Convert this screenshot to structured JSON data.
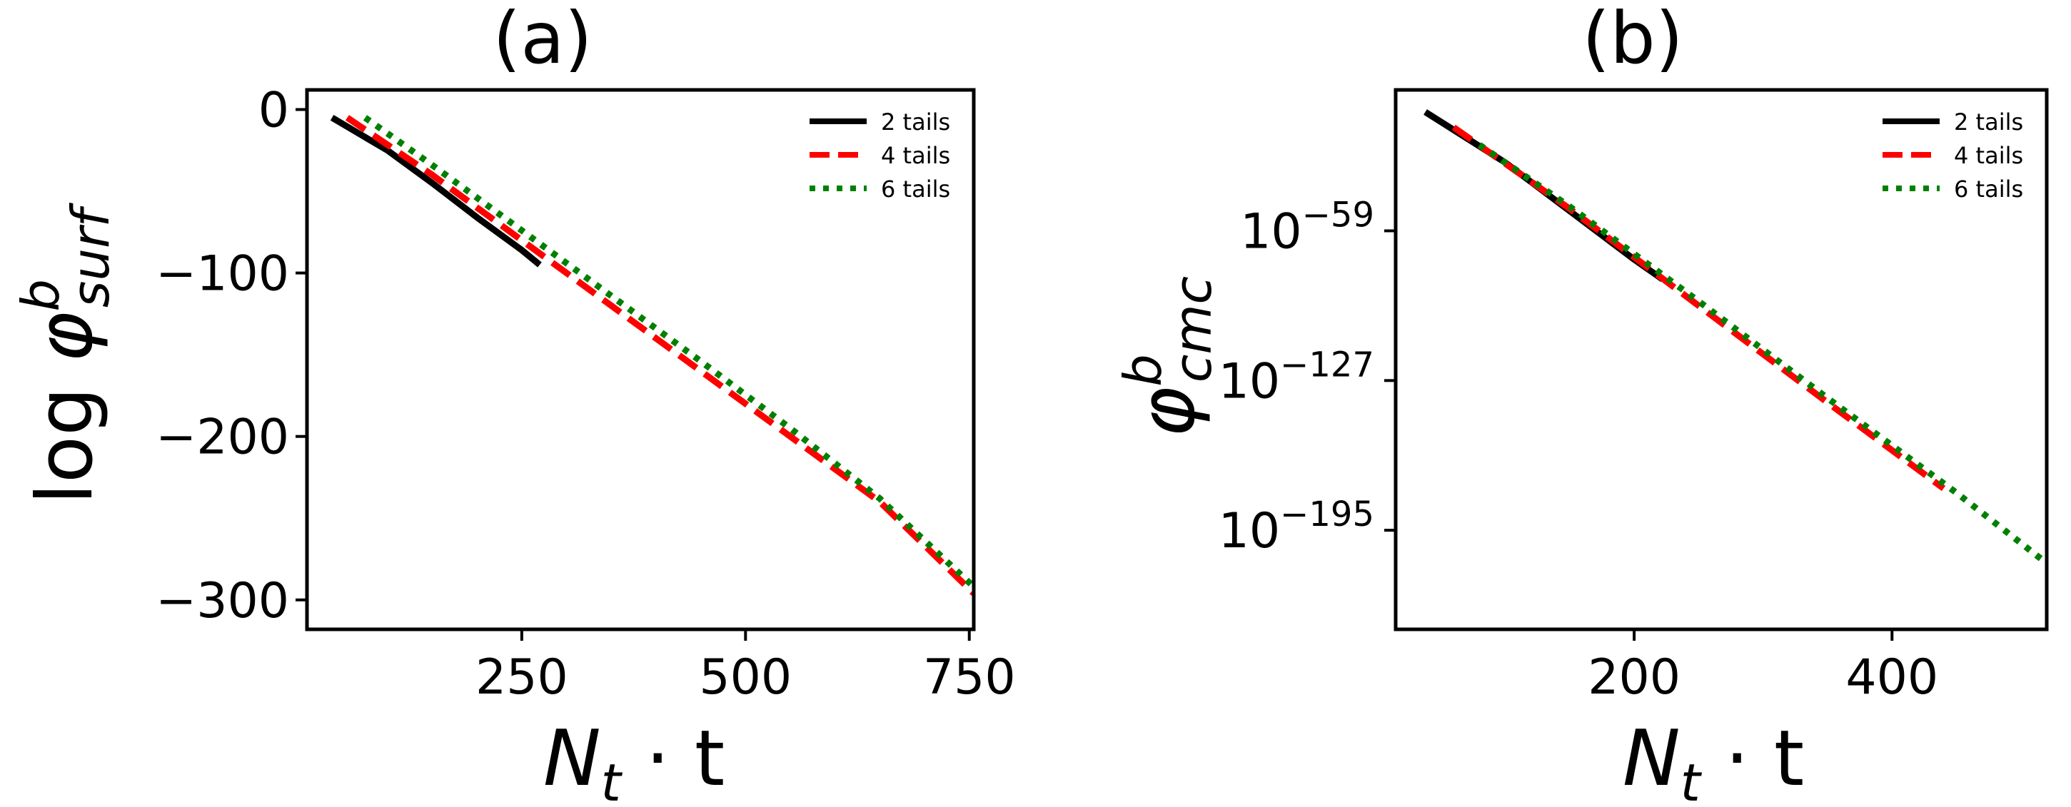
{
  "chart_data": [
    {
      "type": "line",
      "panel_label": "(a)",
      "title": "(a)",
      "xlabel": {
        "main": "N",
        "sub": "t",
        "rest": " · t"
      },
      "ylabel": {
        "prefix": "log ",
        "main": "φ",
        "sup": "b",
        "sub": "surf"
      },
      "xlim": [
        10,
        755
      ],
      "ylim": [
        -318,
        12
      ],
      "yscale": "linear",
      "grid": false,
      "legend_position": "top-right",
      "x_ticks": [
        250,
        500,
        750
      ],
      "x_tick_labels": [
        "250",
        "500",
        "750"
      ],
      "y_ticks": [
        0,
        -100,
        -200,
        -300
      ],
      "y_tick_labels": [
        "0",
        "−100",
        "−200",
        "−300"
      ],
      "series": [
        {
          "name": "2 tails",
          "color": "#000000",
          "dash": "solid",
          "x": [
            38,
            100,
            150,
            200,
            250,
            270
          ],
          "y": [
            -5,
            -25,
            -45,
            -66,
            -86,
            -95
          ]
        },
        {
          "name": "4 tails",
          "color": "#ff0000",
          "dash": "dashed",
          "x": [
            55,
            150,
            250,
            350,
            450,
            550,
            650,
            755
          ],
          "y": [
            -5,
            -40,
            -80,
            -120,
            -160,
            -200,
            -240,
            -296
          ]
        },
        {
          "name": "6 tails",
          "color": "#008000",
          "dash": "dotted",
          "x": [
            75,
            150,
            250,
            350,
            450,
            550,
            650,
            755
          ],
          "y": [
            -5,
            -34,
            -74,
            -114,
            -154,
            -195,
            -238,
            -292
          ]
        }
      ]
    },
    {
      "type": "line",
      "panel_label": "(b)",
      "title": "(b)",
      "xlabel": {
        "main": "N",
        "sub": "t",
        "rest": " · t"
      },
      "ylabel": {
        "prefix": "",
        "main": "φ",
        "sup": "b",
        "sub": "cmc"
      },
      "xlim": [
        15,
        520
      ],
      "ylim": [
        -240,
        5
      ],
      "yscale": "log",
      "grid": false,
      "legend_position": "top-right",
      "x_ticks": [
        200,
        400
      ],
      "x_tick_labels": [
        "200",
        "400"
      ],
      "y_ticks": [
        -59,
        -127,
        -195
      ],
      "y_tick_labels": [
        {
          "base": "10",
          "exp": "−59"
        },
        {
          "base": "10",
          "exp": "−127"
        },
        {
          "base": "10",
          "exp": "−195"
        }
      ],
      "series": [
        {
          "name": "2 tails",
          "color": "#000000",
          "dash": "solid",
          "x": [
            38,
            100,
            150,
            200,
            222
          ],
          "y": [
            -5,
            -28,
            -50,
            -72,
            -81
          ]
        },
        {
          "name": "4 tails",
          "color": "#ff0000",
          "dash": "dashed",
          "x": [
            60,
            150,
            250,
            350,
            440
          ],
          "y": [
            -12,
            -49,
            -93,
            -137,
            -176
          ]
        },
        {
          "name": "6 tails",
          "color": "#008000",
          "dash": "dotted",
          "x": [
            80,
            150,
            250,
            350,
            450,
            520
          ],
          "y": [
            -20,
            -48,
            -91,
            -135,
            -178,
            -210
          ]
        }
      ]
    }
  ]
}
